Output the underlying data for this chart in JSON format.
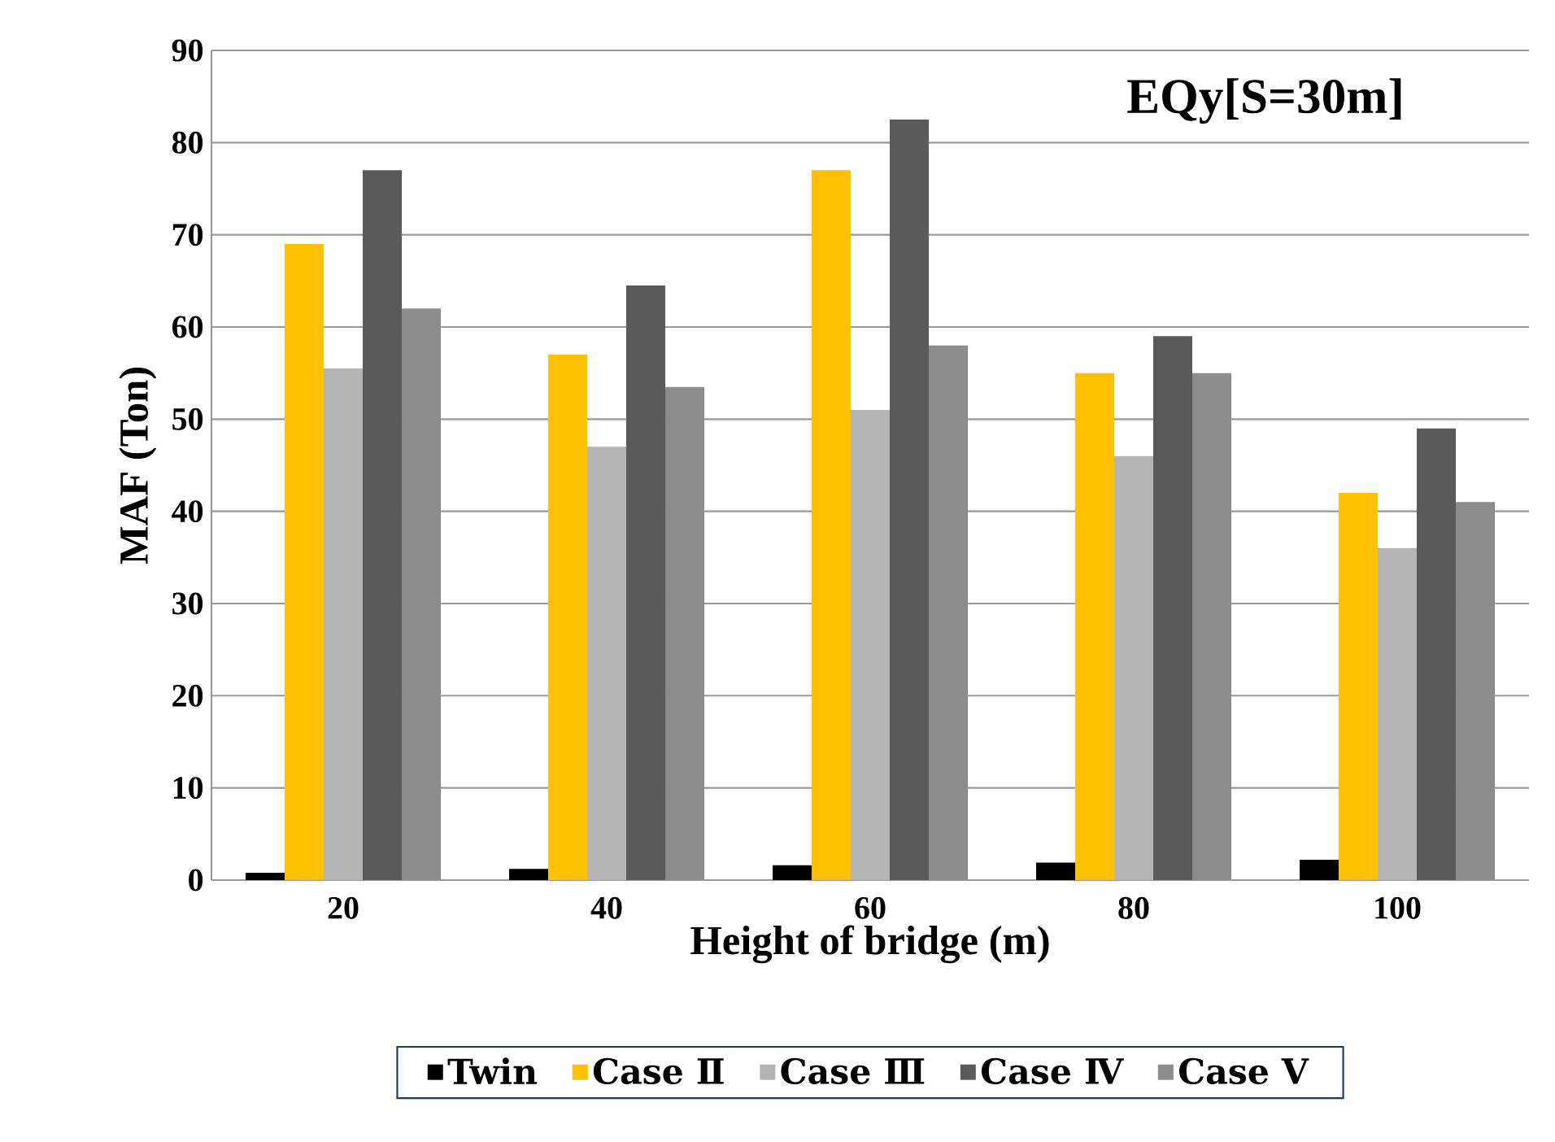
{
  "chart_data": {
    "type": "bar",
    "title": "EQy[S=30m]",
    "xlabel": "Height of bridge (m)",
    "ylabel": "MAF (Ton)",
    "categories": [
      "20",
      "40",
      "60",
      "80",
      "100"
    ],
    "series": [
      {
        "name": "Twin",
        "color": "#000000",
        "values": [
          0.8,
          1.2,
          1.6,
          1.9,
          2.2
        ]
      },
      {
        "name": "Case Ⅱ",
        "color": "#ffc000",
        "values": [
          69,
          57,
          77,
          55,
          42
        ]
      },
      {
        "name": "Case Ⅲ",
        "color": "#b4b4b4",
        "values": [
          55.5,
          47,
          51,
          46,
          36
        ]
      },
      {
        "name": "Case Ⅳ",
        "color": "#5a5a5a",
        "values": [
          77,
          64.5,
          82.5,
          59,
          49
        ]
      },
      {
        "name": "Case Ⅴ",
        "color": "#8c8c8c",
        "values": [
          62,
          53.5,
          58,
          55,
          41
        ]
      }
    ],
    "ylim": [
      0,
      90
    ],
    "yticks": [
      0,
      10,
      20,
      30,
      40,
      50,
      60,
      70,
      80,
      90
    ],
    "grid": "y",
    "legend": "bottom"
  }
}
